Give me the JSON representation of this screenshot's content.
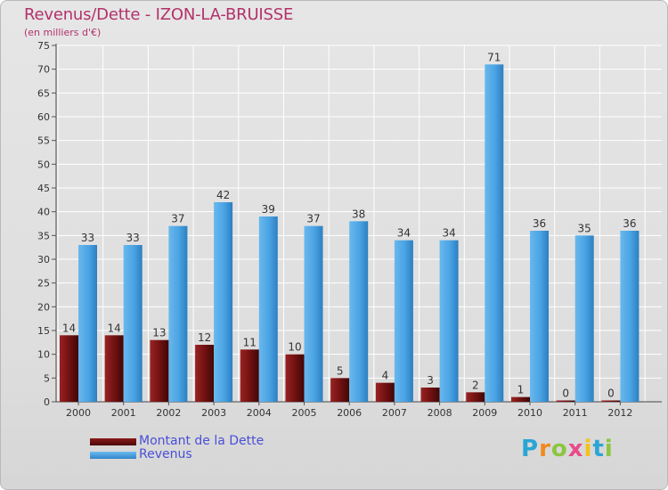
{
  "title": "Revenus/Dette - IZON-LA-BRUISSE",
  "subtitle": "(en milliers d'€)",
  "logo": {
    "letters": [
      "P",
      "r",
      "o",
      "x",
      "i",
      "t",
      "i"
    ],
    "colors": [
      "#2aa6d5",
      "#f08a1c",
      "#8cc63f",
      "#e94a8b",
      "#f4c21b",
      "#2aa6d5",
      "#8cc63f"
    ]
  },
  "chart_data": {
    "type": "bar",
    "categories": [
      "2000",
      "2001",
      "2002",
      "2003",
      "2004",
      "2005",
      "2006",
      "2007",
      "2008",
      "2009",
      "2010",
      "2011",
      "2012"
    ],
    "series": [
      {
        "name": "Montant de la Dette",
        "color": "#7a1414",
        "values": [
          14,
          14,
          13,
          12,
          11,
          10,
          5,
          4,
          3,
          2,
          1,
          0,
          0
        ]
      },
      {
        "name": "Revenus",
        "color": "#4aa3e3",
        "values": [
          33,
          33,
          37,
          42,
          39,
          37,
          38,
          34,
          34,
          71,
          36,
          35,
          36
        ]
      }
    ],
    "ylim": [
      0,
      75
    ],
    "yticks": [
      "0",
      "5",
      "10",
      "15",
      "20",
      "25",
      "30",
      "35",
      "40",
      "45",
      "50",
      "55",
      "60",
      "65",
      "70",
      "75"
    ],
    "grid": true,
    "legend": "bottom-left"
  }
}
